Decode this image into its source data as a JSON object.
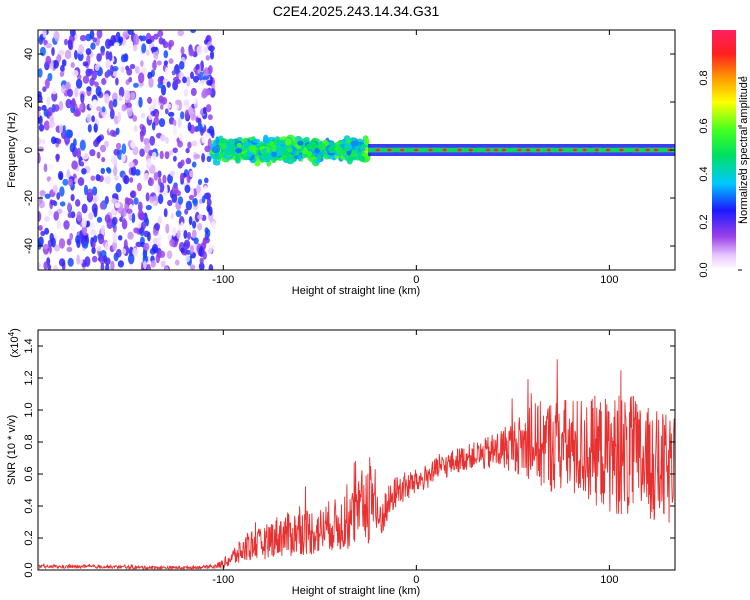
{
  "title": "C2E4.2025.243.14.34.G31",
  "chart_data": [
    {
      "type": "heatmap",
      "xlabel": "Height of straight line (km)",
      "ylabel": "Frequency (Hz)",
      "xlim": [
        -196,
        134
      ],
      "ylim": [
        -50,
        50
      ],
      "xticks": [
        -100,
        0,
        100
      ],
      "xtick_labels": [
        "-100",
        "0",
        "100"
      ],
      "yticks": [
        -40,
        -20,
        0,
        20,
        40
      ],
      "ytick_labels": [
        "-40",
        "-20",
        "0",
        "20",
        "40"
      ],
      "colorbar": {
        "label": "Normalized spectral amplitude",
        "range": [
          0.0,
          1.0
        ],
        "ticks": [
          0.0,
          0.2,
          0.4,
          0.6,
          0.8
        ],
        "tick_labels": [
          "0.0",
          "0.2",
          "0.4",
          "0.6",
          "0.8"
        ]
      },
      "regions": [
        {
          "description": "broadband noise",
          "x_range": [
            -196,
            -105
          ],
          "freq_range": [
            -50,
            50
          ],
          "amplitude": [
            0.0,
            0.3
          ]
        },
        {
          "description": "signal onset, spread",
          "x_range": [
            -105,
            -25
          ],
          "freq_range": [
            -6,
            6
          ],
          "amplitude": [
            0.3,
            0.6
          ]
        },
        {
          "description": "narrow carrier",
          "x_range": [
            -25,
            134
          ],
          "freq_range": [
            -1,
            1
          ],
          "amplitude": [
            0.5,
            1.0
          ]
        }
      ]
    },
    {
      "type": "line",
      "xlabel": "Height of straight line (km)",
      "ylabel": "SNR (10 * v/v)",
      "scale_note": "(x10",
      "scale_exp": "4",
      "xlim": [
        -196,
        134
      ],
      "ylim": [
        0,
        1.5
      ],
      "xticks": [
        -100,
        0,
        100
      ],
      "xtick_labels": [
        "-100",
        "0",
        "100"
      ],
      "yticks": [
        0.0,
        0.2,
        0.4,
        0.6,
        0.8,
        1.0,
        1.2,
        1.4
      ],
      "ytick_labels": [
        "0.0",
        "0.2",
        "0.4",
        "0.6",
        "0.8",
        "1.0",
        "1.2",
        "1.4"
      ],
      "series": [
        {
          "name": "SNR",
          "color": "#e83030",
          "x": [
            -196,
            -180,
            -160,
            -140,
            -120,
            -105,
            -100,
            -95,
            -90,
            -85,
            -80,
            -75,
            -70,
            -65,
            -60,
            -55,
            -50,
            -45,
            -40,
            -35,
            -30,
            -25,
            -23,
            -20,
            -15,
            -10,
            -5,
            0,
            5,
            10,
            15,
            20,
            25,
            30,
            35,
            40,
            45,
            50,
            55,
            60,
            65,
            70,
            75,
            80,
            85,
            90,
            95,
            100,
            105,
            110,
            115,
            120,
            125,
            130,
            134
          ],
          "values": [
            0.02,
            0.02,
            0.02,
            0.015,
            0.015,
            0.02,
            0.04,
            0.08,
            0.12,
            0.16,
            0.16,
            0.2,
            0.22,
            0.22,
            0.24,
            0.24,
            0.24,
            0.28,
            0.28,
            0.3,
            0.36,
            0.45,
            0.5,
            0.3,
            0.4,
            0.5,
            0.52,
            0.55,
            0.58,
            0.62,
            0.65,
            0.68,
            0.7,
            0.72,
            0.72,
            0.74,
            0.76,
            0.78,
            0.78,
            0.8,
            0.78,
            0.78,
            0.78,
            0.76,
            0.76,
            0.75,
            0.74,
            0.72,
            0.72,
            0.7,
            0.68,
            0.66,
            0.64,
            0.62,
            0.6
          ],
          "noise_amplitude": [
            0.01,
            0.01,
            0.01,
            0.01,
            0.01,
            0.01,
            0.03,
            0.06,
            0.08,
            0.1,
            0.1,
            0.12,
            0.14,
            0.14,
            0.15,
            0.15,
            0.15,
            0.16,
            0.17,
            0.18,
            0.2,
            0.3,
            0.35,
            0.15,
            0.12,
            0.1,
            0.1,
            0.08,
            0.08,
            0.08,
            0.08,
            0.08,
            0.08,
            0.08,
            0.1,
            0.12,
            0.14,
            0.16,
            0.2,
            0.25,
            0.28,
            0.3,
            0.3,
            0.32,
            0.33,
            0.34,
            0.35,
            0.36,
            0.38,
            0.4,
            0.38,
            0.36,
            0.36,
            0.35,
            0.35
          ]
        }
      ]
    }
  ]
}
